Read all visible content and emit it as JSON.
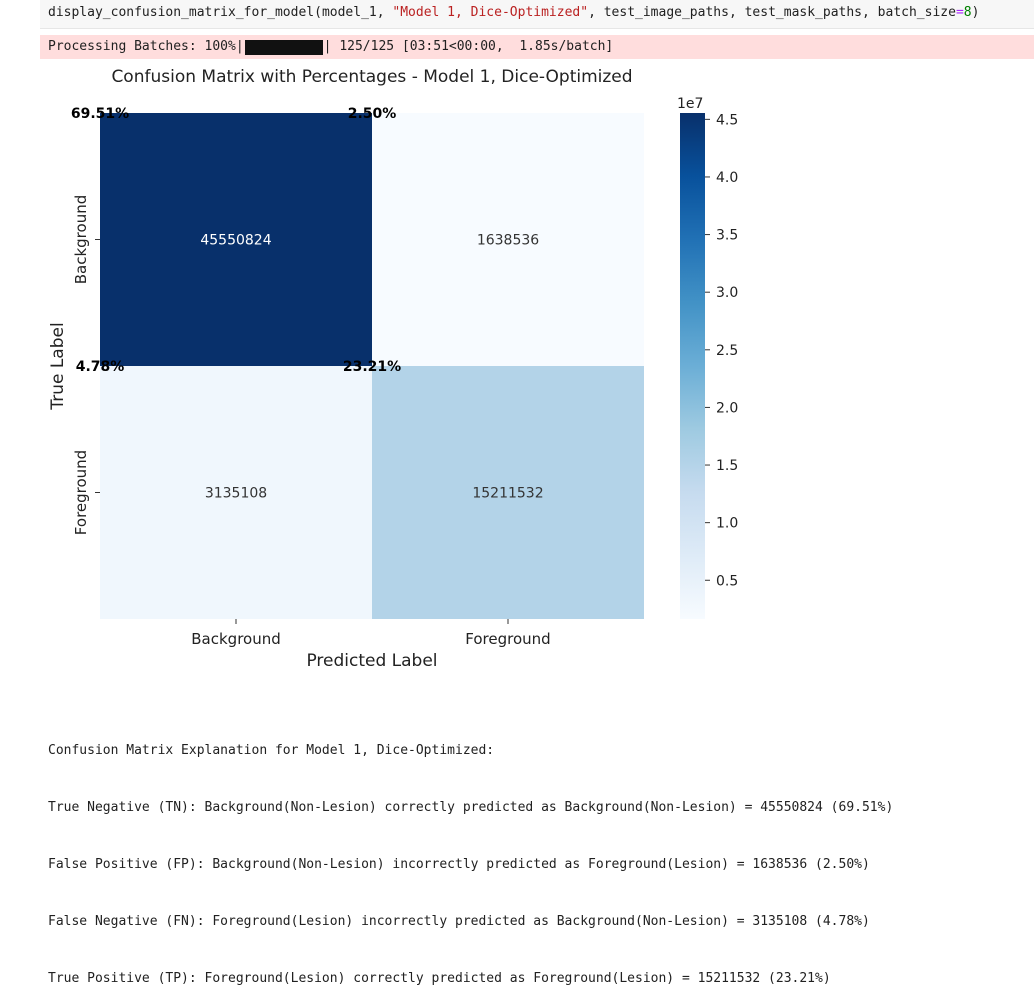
{
  "code_cell": {
    "func": "display_confusion_matrix_for_model",
    "arg1": "model_1",
    "arg2": "\"Model 1, Dice-Optimized\"",
    "arg3": "test_image_paths",
    "arg4": "test_mask_paths",
    "kw": "batch_size",
    "kw_val": "8"
  },
  "progress": {
    "prefix": "Processing Batches: 100%|",
    "suffix": "| 125/125 [03:51<00:00,  1.85s/batch]",
    "fraction": 1.0
  },
  "chart_data": {
    "type": "heatmap",
    "title": "Confusion Matrix with Percentages - Model 1, Dice-Optimized",
    "xlabel": "Predicted Label",
    "ylabel": "True Label",
    "x_categories": [
      "Background",
      "Foreground"
    ],
    "y_categories": [
      "Background",
      "Foreground"
    ],
    "values": [
      [
        45550824,
        1638536
      ],
      [
        3135108,
        15211532
      ]
    ],
    "percentages": [
      [
        "69.51%",
        "2.50%"
      ],
      [
        "4.78%",
        "23.21%"
      ]
    ],
    "colorbar": {
      "scale_label": "1e7",
      "ticks": [
        0.5,
        1.0,
        1.5,
        2.0,
        2.5,
        3.0,
        3.5,
        4.0,
        4.5
      ],
      "tick_labels": [
        "0.5",
        "1.0",
        "1.5",
        "2.0",
        "2.5",
        "3.0",
        "3.5",
        "4.0",
        "4.5"
      ],
      "vmin": 0.1638536,
      "vmax": 4.5550824
    },
    "colormap": [
      "#f7fbff",
      "#deebf7",
      "#c6dbef",
      "#9ecae1",
      "#6baed6",
      "#4292c6",
      "#2171b5",
      "#08519c",
      "#08306b"
    ]
  },
  "explanation": {
    "heading": "Confusion Matrix Explanation for Model 1, Dice-Optimized:",
    "lines": [
      "True Negative (TN): Background(Non-Lesion) correctly predicted as Background(Non-Lesion) = 45550824 (69.51%)",
      "False Positive (FP): Background(Non-Lesion) incorrectly predicted as Foreground(Lesion) = 1638536 (2.50%)",
      "False Negative (FN): Foreground(Lesion) incorrectly predicted as Background(Non-Lesion) = 3135108 (4.78%)",
      "True Positive (TP): Foreground(Lesion) correctly predicted as Foreground(Lesion) = 15211532 (23.21%)"
    ]
  }
}
